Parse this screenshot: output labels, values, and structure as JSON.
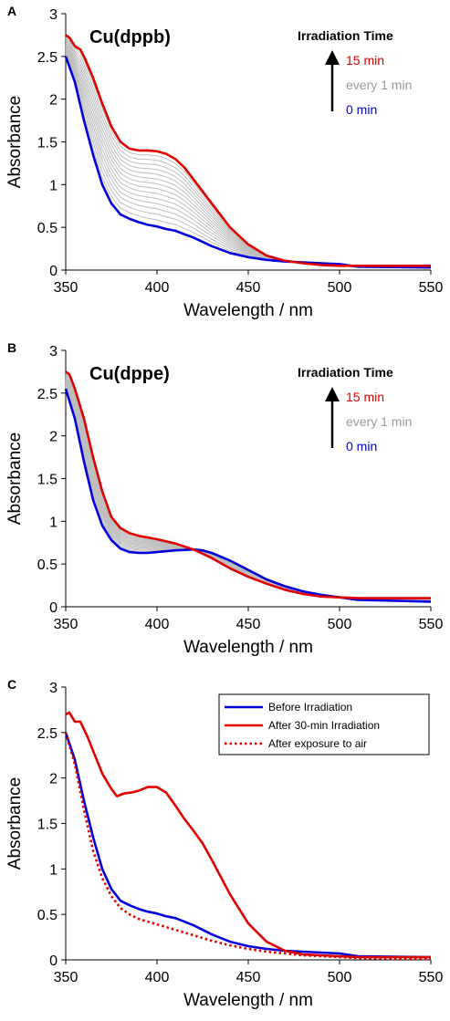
{
  "chart_data": [
    {
      "type": "line",
      "panel": "A",
      "title": "Cu(dppb)",
      "xlabel": "Wavelength / nm",
      "ylabel": "Absorbance",
      "xlim": [
        350,
        550
      ],
      "ylim": [
        0,
        3
      ],
      "xticks": [
        350,
        400,
        450,
        500,
        550
      ],
      "yticks": [
        0,
        0.5,
        1,
        1.5,
        2,
        2.5,
        3
      ],
      "grid": false,
      "annotation": {
        "title": "Irradiation Time",
        "top": "15 min",
        "middle": "every 1 min",
        "bottom": "0 min",
        "top_color": "#e00000",
        "middle_color": "#999999",
        "bottom_color": "#0000cc"
      },
      "series": [
        {
          "color": "#0000dd",
          "style": "solid",
          "x": [
            350,
            355,
            360,
            365,
            370,
            375,
            380,
            385,
            390,
            395,
            400,
            405,
            410,
            415,
            420,
            425,
            430,
            440,
            450,
            460,
            470,
            480,
            490,
            500,
            510,
            550
          ],
          "y": [
            2.5,
            2.2,
            1.75,
            1.35,
            1.0,
            0.78,
            0.65,
            0.6,
            0.56,
            0.53,
            0.51,
            0.48,
            0.46,
            0.42,
            0.38,
            0.33,
            0.28,
            0.2,
            0.15,
            0.12,
            0.1,
            0.09,
            0.08,
            0.07,
            0.04,
            0.03
          ]
        },
        {
          "color": "#e00000",
          "style": "solid",
          "x": [
            350,
            352,
            355,
            358,
            360,
            365,
            370,
            375,
            380,
            385,
            390,
            395,
            400,
            405,
            410,
            415,
            420,
            425,
            430,
            440,
            450,
            460,
            470,
            480,
            490,
            500,
            510,
            550
          ],
          "y": [
            2.75,
            2.72,
            2.62,
            2.58,
            2.5,
            2.25,
            1.95,
            1.68,
            1.5,
            1.42,
            1.4,
            1.4,
            1.39,
            1.36,
            1.3,
            1.2,
            1.06,
            0.92,
            0.78,
            0.5,
            0.3,
            0.17,
            0.11,
            0.08,
            0.06,
            0.05,
            0.05,
            0.05
          ]
        }
      ]
    },
    {
      "type": "line",
      "panel": "B",
      "title": "Cu(dppe)",
      "xlabel": "Wavelength / nm",
      "ylabel": "Absorbance",
      "xlim": [
        350,
        550
      ],
      "ylim": [
        0,
        3
      ],
      "xticks": [
        350,
        400,
        450,
        500,
        550
      ],
      "yticks": [
        0,
        0.5,
        1,
        1.5,
        2,
        2.5,
        3
      ],
      "grid": false,
      "annotation": {
        "title": "Irradiation Time",
        "top": "15 min",
        "middle": "every 1 min",
        "bottom": "0 min",
        "top_color": "#e00000",
        "middle_color": "#999999",
        "bottom_color": "#0000cc"
      },
      "series": [
        {
          "color": "#0000dd",
          "style": "solid",
          "x": [
            350,
            355,
            360,
            365,
            370,
            375,
            380,
            385,
            390,
            395,
            400,
            410,
            420,
            425,
            430,
            440,
            450,
            460,
            470,
            480,
            490,
            500,
            510,
            550
          ],
          "y": [
            2.55,
            2.2,
            1.7,
            1.25,
            0.95,
            0.78,
            0.68,
            0.64,
            0.63,
            0.63,
            0.64,
            0.66,
            0.67,
            0.66,
            0.63,
            0.54,
            0.43,
            0.32,
            0.24,
            0.18,
            0.14,
            0.11,
            0.08,
            0.06
          ]
        },
        {
          "color": "#e00000",
          "style": "solid",
          "x": [
            350,
            352,
            355,
            360,
            365,
            370,
            375,
            380,
            385,
            390,
            395,
            400,
            410,
            420,
            430,
            440,
            450,
            460,
            470,
            480,
            490,
            500,
            510,
            550
          ],
          "y": [
            2.75,
            2.72,
            2.55,
            2.2,
            1.75,
            1.35,
            1.05,
            0.92,
            0.86,
            0.83,
            0.81,
            0.79,
            0.74,
            0.67,
            0.57,
            0.45,
            0.35,
            0.27,
            0.2,
            0.15,
            0.12,
            0.11,
            0.1,
            0.1
          ]
        }
      ]
    },
    {
      "type": "line",
      "panel": "C",
      "title": "",
      "xlabel": "Wavelength / nm",
      "ylabel": "Absorbance",
      "xlim": [
        350,
        550
      ],
      "ylim": [
        0,
        3
      ],
      "xticks": [
        350,
        400,
        450,
        500,
        550
      ],
      "yticks": [
        0,
        0.5,
        1,
        1.5,
        2,
        2.5,
        3
      ],
      "grid": false,
      "legend": "top-right",
      "series": [
        {
          "name": "Before Irradiation",
          "color": "#0000dd",
          "style": "solid",
          "x": [
            350,
            355,
            360,
            365,
            370,
            375,
            380,
            385,
            390,
            395,
            400,
            405,
            410,
            415,
            420,
            425,
            430,
            440,
            450,
            460,
            470,
            480,
            490,
            500,
            510,
            550
          ],
          "y": [
            2.5,
            2.2,
            1.75,
            1.35,
            1.0,
            0.78,
            0.65,
            0.6,
            0.56,
            0.53,
            0.51,
            0.48,
            0.46,
            0.42,
            0.38,
            0.33,
            0.28,
            0.2,
            0.15,
            0.12,
            0.1,
            0.09,
            0.08,
            0.07,
            0.04,
            0.03
          ]
        },
        {
          "name": "After 30-min Irradiation",
          "color": "#e00000",
          "style": "solid",
          "x": [
            350,
            352,
            355,
            358,
            362,
            365,
            370,
            375,
            378,
            382,
            386,
            390,
            395,
            400,
            405,
            410,
            415,
            420,
            425,
            430,
            440,
            450,
            460,
            470,
            480,
            490,
            500,
            510,
            550
          ],
          "y": [
            2.7,
            2.72,
            2.62,
            2.62,
            2.45,
            2.3,
            2.05,
            1.88,
            1.8,
            1.83,
            1.84,
            1.86,
            1.9,
            1.9,
            1.84,
            1.7,
            1.55,
            1.42,
            1.28,
            1.1,
            0.72,
            0.4,
            0.2,
            0.1,
            0.06,
            0.05,
            0.04,
            0.03,
            0.03
          ]
        },
        {
          "name": "After exposure to air",
          "color": "#e00000",
          "style": "dotted",
          "x": [
            350,
            355,
            360,
            365,
            370,
            375,
            380,
            385,
            390,
            395,
            400,
            410,
            420,
            430,
            440,
            450,
            460,
            470,
            480,
            490,
            500,
            510,
            550
          ],
          "y": [
            2.5,
            2.15,
            1.65,
            1.2,
            0.9,
            0.7,
            0.57,
            0.5,
            0.45,
            0.42,
            0.39,
            0.33,
            0.27,
            0.21,
            0.16,
            0.12,
            0.09,
            0.07,
            0.05,
            0.04,
            0.03,
            0.02,
            0.01
          ]
        }
      ]
    }
  ]
}
